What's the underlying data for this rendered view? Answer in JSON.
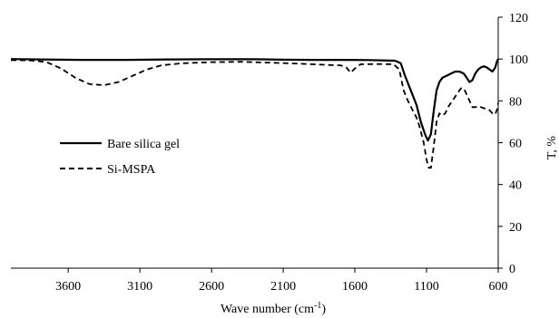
{
  "chart_data": {
    "type": "line",
    "title": "",
    "xlabel": "Wave number (cm",
    "xlabel_sup": "-1",
    "xlabel_close": ")",
    "ylabel": "T, %",
    "xlim": [
      4000,
      600
    ],
    "ylim": [
      0,
      120
    ],
    "x_ticks": [
      3600,
      3100,
      2600,
      2100,
      1600,
      1100,
      600
    ],
    "y_ticks": [
      0,
      20,
      40,
      60,
      80,
      100,
      120
    ],
    "grid": false,
    "legend_position": "middle-left",
    "colors": {
      "line": "#000000",
      "axis": "#000000"
    },
    "series": [
      {
        "name": "Bare silica gel",
        "style": "solid",
        "points": [
          [
            4000,
            100
          ],
          [
            3800,
            99.8
          ],
          [
            3500,
            99.6
          ],
          [
            3200,
            99.6
          ],
          [
            2900,
            99.8
          ],
          [
            2600,
            99.9
          ],
          [
            2300,
            99.9
          ],
          [
            2100,
            99.7
          ],
          [
            1900,
            99.6
          ],
          [
            1700,
            99.6
          ],
          [
            1500,
            99.5
          ],
          [
            1320,
            99.2
          ],
          [
            1280,
            98
          ],
          [
            1250,
            92
          ],
          [
            1210,
            85
          ],
          [
            1170,
            78
          ],
          [
            1140,
            70
          ],
          [
            1110,
            64
          ],
          [
            1090,
            61
          ],
          [
            1070,
            64
          ],
          [
            1050,
            75
          ],
          [
            1030,
            85
          ],
          [
            1010,
            89
          ],
          [
            990,
            91
          ],
          [
            960,
            92
          ],
          [
            930,
            93
          ],
          [
            900,
            94
          ],
          [
            870,
            94
          ],
          [
            840,
            93
          ],
          [
            820,
            91
          ],
          [
            800,
            89
          ],
          [
            780,
            90
          ],
          [
            760,
            93
          ],
          [
            740,
            95
          ],
          [
            720,
            96
          ],
          [
            700,
            96.5
          ],
          [
            680,
            96
          ],
          [
            660,
            95
          ],
          [
            640,
            94
          ],
          [
            620,
            96
          ],
          [
            608,
            99
          ],
          [
            600,
            100
          ]
        ]
      },
      {
        "name": "Si-MSPA",
        "style": "dashed",
        "points": [
          [
            4000,
            99.5
          ],
          [
            3850,
            99.3
          ],
          [
            3750,
            98.5
          ],
          [
            3650,
            95.5
          ],
          [
            3550,
            91
          ],
          [
            3450,
            88
          ],
          [
            3350,
            87.5
          ],
          [
            3250,
            89
          ],
          [
            3150,
            92
          ],
          [
            3050,
            95
          ],
          [
            2950,
            97
          ],
          [
            2800,
            98
          ],
          [
            2600,
            98.5
          ],
          [
            2400,
            98.7
          ],
          [
            2200,
            98.3
          ],
          [
            2000,
            97.8
          ],
          [
            1900,
            97.5
          ],
          [
            1800,
            97.2
          ],
          [
            1700,
            97
          ],
          [
            1660,
            96
          ],
          [
            1630,
            93.5
          ],
          [
            1600,
            95.5
          ],
          [
            1560,
            97.5
          ],
          [
            1450,
            97.6
          ],
          [
            1330,
            97.5
          ],
          [
            1290,
            95
          ],
          [
            1260,
            85
          ],
          [
            1230,
            80
          ],
          [
            1200,
            76
          ],
          [
            1170,
            72
          ],
          [
            1150,
            68
          ],
          [
            1120,
            60
          ],
          [
            1100,
            52
          ],
          [
            1085,
            48
          ],
          [
            1070,
            48
          ],
          [
            1050,
            58
          ],
          [
            1030,
            70
          ],
          [
            1010,
            74
          ],
          [
            990,
            73
          ],
          [
            970,
            74
          ],
          [
            950,
            77
          ],
          [
            920,
            80
          ],
          [
            890,
            83
          ],
          [
            860,
            86
          ],
          [
            840,
            86
          ],
          [
            820,
            83
          ],
          [
            800,
            80
          ],
          [
            780,
            77
          ],
          [
            760,
            77
          ],
          [
            740,
            77.5
          ],
          [
            720,
            77
          ],
          [
            700,
            76.5
          ],
          [
            680,
            76
          ],
          [
            660,
            75.5
          ],
          [
            640,
            74
          ],
          [
            620,
            73.5
          ],
          [
            608,
            76
          ],
          [
            600,
            79
          ]
        ]
      }
    ]
  }
}
